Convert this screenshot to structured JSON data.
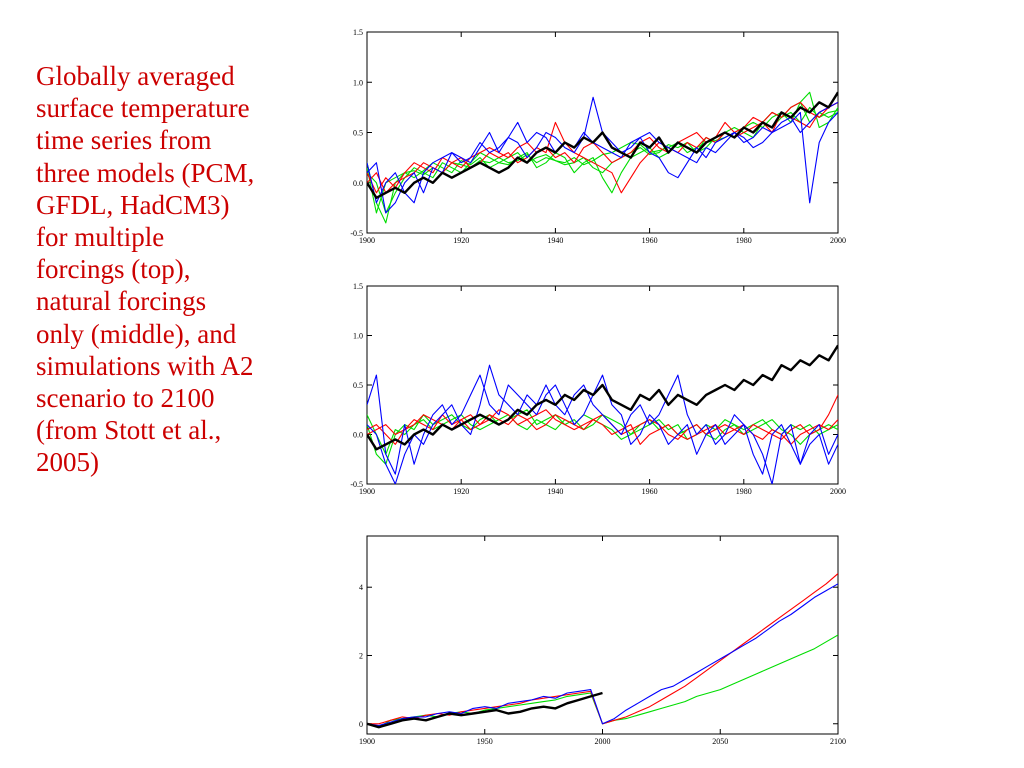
{
  "caption": "Globally averaged\nsurface temperature\ntime series from\nthree models (PCM,\nGFDL, HadCM3)\nfor multiple\nforcings (top),\nnatural forcings\nonly (middle), and\nsimulations with A2\nscenario to 2100\n(from Stott et al.,\n2005)",
  "colors": {
    "caption": "#cc0000",
    "observed": "#000000",
    "pcm": "#0000ff",
    "gfdl": "#ff0000",
    "hadcm3": "#00dd00"
  },
  "chart_data": [
    {
      "type": "line",
      "panel": "top",
      "xlim": [
        1900,
        2000
      ],
      "ylim": [
        -0.5,
        1.5
      ],
      "x_ticks": [
        "1900",
        "1920",
        "1940",
        "1960",
        "1980",
        "2000"
      ],
      "y_ticks": [
        "-0.5",
        "0.0",
        "0.5",
        "1.0",
        "1.5"
      ],
      "x_start": 1900,
      "x_step": 2,
      "series": [
        {
          "color": "#00dd00",
          "values": [
            0.15,
            -0.3,
            0.0,
            0.05,
            0.1,
            0.12,
            0.08,
            0.15,
            0.1,
            0.2,
            0.18,
            0.15,
            0.22,
            0.2,
            0.25,
            0.2,
            0.22,
            0.28,
            0.2,
            0.25,
            0.22,
            0.2,
            0.25,
            0.18,
            0.22,
            0.28,
            0.3,
            0.35,
            0.4,
            0.38,
            0.3,
            0.32,
            0.35,
            0.4,
            0.3,
            0.35,
            0.4,
            0.42,
            0.45,
            0.5,
            0.55,
            0.5,
            0.6,
            0.7,
            0.65,
            0.75,
            0.8,
            0.6,
            0.7,
            0.65,
            0.7
          ]
        },
        {
          "color": "#00dd00",
          "values": [
            0.2,
            -0.2,
            -0.4,
            0.0,
            0.1,
            0.05,
            0.12,
            0.2,
            0.15,
            0.1,
            0.22,
            0.18,
            0.25,
            0.15,
            0.2,
            0.25,
            0.3,
            0.2,
            0.25,
            0.28,
            0.22,
            0.18,
            0.2,
            0.25,
            0.15,
            0.1,
            0.2,
            0.25,
            0.3,
            0.35,
            0.28,
            0.3,
            0.38,
            0.35,
            0.4,
            0.3,
            0.35,
            0.45,
            0.5,
            0.45,
            0.55,
            0.6,
            0.55,
            0.65,
            0.7,
            0.6,
            0.8,
            0.9,
            0.55,
            0.6,
            0.75
          ]
        },
        {
          "color": "#00dd00",
          "values": [
            0.1,
            0.0,
            -0.3,
            -0.1,
            0.05,
            0.15,
            0.1,
            0.05,
            0.2,
            0.15,
            0.1,
            0.2,
            0.3,
            0.25,
            0.2,
            0.18,
            0.25,
            0.3,
            0.15,
            0.2,
            0.3,
            0.25,
            0.1,
            0.2,
            0.25,
            0.05,
            -0.1,
            0.1,
            0.25,
            0.3,
            0.35,
            0.25,
            0.3,
            0.4,
            0.35,
            0.3,
            0.45,
            0.4,
            0.5,
            0.55,
            0.5,
            0.45,
            0.6,
            0.55,
            0.65,
            0.7,
            0.6,
            0.75,
            0.65,
            0.7,
            0.72
          ]
        },
        {
          "color": "#ff0000",
          "values": [
            0.1,
            -0.1,
            0.05,
            -0.05,
            0.1,
            0.2,
            0.15,
            0.1,
            0.25,
            0.2,
            0.15,
            0.25,
            0.3,
            0.35,
            0.3,
            0.25,
            0.35,
            0.4,
            0.3,
            0.35,
            0.25,
            0.3,
            0.2,
            0.35,
            0.4,
            0.3,
            0.2,
            0.25,
            0.3,
            0.4,
            0.45,
            0.35,
            0.3,
            0.4,
            0.45,
            0.5,
            0.4,
            0.45,
            0.6,
            0.5,
            0.55,
            0.65,
            0.6,
            0.7,
            0.65,
            0.75,
            0.8,
            0.7,
            0.65,
            0.75,
            0.8
          ]
        },
        {
          "color": "#ff0000",
          "values": [
            0.0,
            0.1,
            -0.1,
            0.0,
            0.05,
            0.1,
            0.2,
            0.15,
            0.1,
            0.2,
            0.25,
            0.15,
            0.2,
            0.3,
            0.25,
            0.3,
            0.2,
            0.25,
            0.35,
            0.3,
            0.6,
            0.4,
            0.3,
            0.25,
            0.2,
            0.15,
            0.1,
            -0.1,
            0.05,
            0.2,
            0.3,
            0.4,
            0.35,
            0.3,
            0.4,
            0.35,
            0.45,
            0.4,
            0.5,
            0.45,
            0.5,
            0.55,
            0.6,
            0.5,
            0.7,
            0.65,
            0.6,
            0.55,
            0.7,
            0.75,
            0.8
          ]
        },
        {
          "color": "#0000ff",
          "values": [
            0.2,
            -0.2,
            0.0,
            0.1,
            -0.1,
            -0.2,
            0.1,
            0.2,
            0.25,
            0.3,
            0.2,
            0.25,
            0.4,
            0.3,
            0.35,
            0.45,
            0.6,
            0.4,
            0.5,
            0.45,
            0.3,
            0.4,
            0.35,
            0.5,
            0.4,
            0.35,
            0.3,
            0.25,
            0.4,
            0.45,
            0.5,
            0.4,
            0.35,
            0.3,
            0.25,
            0.2,
            0.35,
            0.3,
            0.4,
            0.5,
            0.45,
            0.35,
            0.4,
            0.5,
            0.55,
            0.6,
            0.7,
            -0.2,
            0.4,
            0.6,
            0.7
          ]
        },
        {
          "color": "#0000ff",
          "values": [
            0.1,
            0.2,
            -0.3,
            -0.2,
            0.0,
            0.1,
            -0.1,
            0.15,
            0.1,
            0.3,
            0.25,
            0.2,
            0.35,
            0.5,
            0.3,
            0.45,
            0.4,
            0.25,
            0.35,
            0.5,
            0.45,
            0.35,
            0.3,
            0.45,
            0.85,
            0.5,
            0.4,
            0.3,
            0.35,
            0.45,
            0.3,
            0.25,
            0.1,
            0.05,
            0.2,
            0.35,
            0.25,
            0.4,
            0.45,
            0.5,
            0.4,
            0.45,
            0.55,
            0.5,
            0.6,
            0.65,
            0.5,
            0.6,
            0.7,
            0.75,
            0.8
          ]
        },
        {
          "color": "#000000",
          "bold": true,
          "values": [
            0.0,
            -0.15,
            -0.1,
            -0.05,
            -0.1,
            0.0,
            0.05,
            0.0,
            0.1,
            0.05,
            0.1,
            0.15,
            0.2,
            0.15,
            0.1,
            0.15,
            0.25,
            0.2,
            0.3,
            0.35,
            0.3,
            0.4,
            0.35,
            0.45,
            0.4,
            0.5,
            0.35,
            0.3,
            0.25,
            0.4,
            0.35,
            0.45,
            0.3,
            0.4,
            0.35,
            0.3,
            0.4,
            0.45,
            0.5,
            0.45,
            0.55,
            0.5,
            0.6,
            0.55,
            0.7,
            0.65,
            0.75,
            0.7,
            0.8,
            0.75,
            0.9
          ]
        }
      ]
    },
    {
      "type": "line",
      "panel": "middle",
      "xlim": [
        1900,
        2000
      ],
      "ylim": [
        -0.5,
        1.5
      ],
      "x_ticks": [
        "1900",
        "1920",
        "1940",
        "1960",
        "1980",
        "2000"
      ],
      "y_ticks": [
        "-0.5",
        "0.0",
        "0.5",
        "1.0",
        "1.5"
      ],
      "x_start": 1900,
      "x_step": 2,
      "series": [
        {
          "color": "#00dd00",
          "values": [
            0.1,
            -0.2,
            -0.3,
            0.0,
            0.1,
            0.05,
            0.2,
            0.1,
            0.15,
            0.2,
            0.1,
            0.05,
            0.15,
            0.2,
            0.1,
            0.15,
            0.2,
            0.25,
            0.1,
            0.15,
            0.2,
            0.1,
            0.15,
            0.05,
            0.1,
            0.2,
            0.15,
            0.1,
            0.0,
            0.05,
            0.1,
            0.15,
            0.05,
            0.1,
            -0.05,
            0.0,
            0.1,
            0.05,
            0.15,
            0.1,
            0.05,
            0.1,
            0.15,
            0.05,
            0.0,
            0.1,
            0.05,
            0.1,
            0.0,
            0.05,
            0.1
          ]
        },
        {
          "color": "#00dd00",
          "values": [
            0.2,
            0.0,
            -0.2,
            0.05,
            0.0,
            0.1,
            0.15,
            0.05,
            0.1,
            0.15,
            0.2,
            0.1,
            0.05,
            0.1,
            0.15,
            0.2,
            0.1,
            0.05,
            0.15,
            0.1,
            0.05,
            0.15,
            0.1,
            0.2,
            0.15,
            0.1,
            0.05,
            -0.05,
            0.0,
            0.1,
            0.15,
            0.05,
            0.1,
            0.0,
            0.05,
            0.1,
            0.0,
            -0.05,
            0.05,
            0.1,
            0.0,
            0.05,
            0.1,
            0.15,
            0.05,
            0.0,
            -0.1,
            0.0,
            0.05,
            0.1,
            0.05
          ]
        },
        {
          "color": "#ff0000",
          "values": [
            0.05,
            0.1,
            0.0,
            -0.1,
            0.05,
            0.1,
            0.2,
            0.15,
            0.1,
            0.05,
            0.15,
            0.2,
            0.1,
            0.15,
            0.25,
            0.2,
            0.1,
            0.15,
            0.2,
            0.25,
            0.15,
            0.1,
            0.05,
            0.1,
            0.15,
            0.2,
            0.1,
            0.0,
            0.05,
            0.1,
            0.15,
            0.1,
            0.0,
            -0.05,
            0.05,
            0.1,
            0.0,
            0.05,
            0.1,
            0.05,
            0.0,
            0.1,
            0.05,
            0.0,
            -0.05,
            0.05,
            0.1,
            0.0,
            0.05,
            0.2,
            0.4
          ]
        },
        {
          "color": "#ff0000",
          "values": [
            0.0,
            0.05,
            0.1,
            0.0,
            0.05,
            0.15,
            0.1,
            0.05,
            0.2,
            0.1,
            0.15,
            0.05,
            0.1,
            0.2,
            0.15,
            0.1,
            0.2,
            0.15,
            0.05,
            0.1,
            0.2,
            0.15,
            0.1,
            0.05,
            0.15,
            0.1,
            0.0,
            0.05,
            0.1,
            -0.1,
            0.0,
            0.05,
            0.1,
            0.0,
            -0.05,
            0.0,
            0.05,
            0.1,
            0.0,
            0.05,
            0.1,
            0.0,
            -0.05,
            0.05,
            0.0,
            -0.1,
            0.0,
            0.05,
            0.1,
            0.05,
            0.15
          ]
        },
        {
          "color": "#0000ff",
          "values": [
            0.3,
            0.6,
            -0.2,
            -0.4,
            0.1,
            -0.3,
            0.0,
            0.2,
            0.3,
            0.1,
            0.2,
            0.4,
            0.6,
            0.3,
            0.2,
            0.5,
            0.4,
            0.3,
            0.2,
            0.4,
            0.5,
            0.3,
            0.1,
            0.2,
            0.4,
            0.6,
            0.3,
            0.2,
            -0.1,
            0.0,
            0.2,
            0.1,
            -0.1,
            0.0,
            0.1,
            -0.2,
            0.0,
            0.1,
            -0.1,
            0.0,
            0.1,
            -0.2,
            -0.4,
            0.0,
            0.1,
            -0.1,
            -0.3,
            0.0,
            0.1,
            -0.2,
            0.0
          ]
        },
        {
          "color": "#0000ff",
          "values": [
            0.1,
            0.0,
            -0.3,
            -0.5,
            -0.2,
            0.0,
            -0.1,
            0.1,
            0.2,
            0.3,
            0.1,
            0.0,
            0.3,
            0.7,
            0.4,
            0.3,
            0.2,
            0.4,
            0.3,
            0.5,
            0.3,
            0.2,
            0.4,
            0.5,
            0.3,
            0.2,
            0.1,
            0.0,
            0.2,
            0.3,
            0.1,
            0.2,
            0.4,
            0.6,
            0.2,
            0.0,
            0.1,
            -0.1,
            0.0,
            0.2,
            0.1,
            0.0,
            -0.2,
            -0.5,
            0.0,
            0.1,
            -0.3,
            -0.1,
            0.0,
            -0.3,
            -0.1
          ]
        },
        {
          "color": "#000000",
          "bold": true,
          "values": [
            0.0,
            -0.15,
            -0.1,
            -0.05,
            -0.1,
            0.0,
            0.05,
            0.0,
            0.1,
            0.05,
            0.1,
            0.15,
            0.2,
            0.15,
            0.1,
            0.15,
            0.25,
            0.2,
            0.3,
            0.35,
            0.3,
            0.4,
            0.35,
            0.45,
            0.4,
            0.5,
            0.35,
            0.3,
            0.25,
            0.4,
            0.35,
            0.45,
            0.3,
            0.4,
            0.35,
            0.3,
            0.4,
            0.45,
            0.5,
            0.45,
            0.55,
            0.5,
            0.6,
            0.55,
            0.7,
            0.65,
            0.75,
            0.7,
            0.8,
            0.75,
            0.9
          ]
        }
      ]
    },
    {
      "type": "line",
      "panel": "bottom",
      "xlim": [
        1900,
        2100
      ],
      "ylim": [
        -0.3,
        5.5
      ],
      "x_ticks": [
        "1900",
        "1950",
        "2000",
        "2050",
        "2100"
      ],
      "y_ticks": [
        "0",
        "2",
        "4"
      ],
      "x_start": 1900,
      "x_step": 5,
      "series": [
        {
          "color": "#00dd00",
          "values": [
            0.0,
            -0.1,
            0.1,
            0.15,
            0.2,
            0.25,
            0.2,
            0.3,
            0.35,
            0.3,
            0.4,
            0.45,
            0.5,
            0.55,
            0.6,
            0.65,
            0.7,
            0.8,
            0.85,
            0.9,
            0.0,
            0.1,
            0.15,
            0.25,
            0.35,
            0.45,
            0.55,
            0.65,
            0.8,
            0.9,
            1.0,
            1.15,
            1.3,
            1.45,
            1.6,
            1.75,
            1.9,
            2.05,
            2.2,
            2.4,
            2.6
          ]
        },
        {
          "color": "#ff0000",
          "values": [
            0.0,
            0.0,
            0.1,
            0.2,
            0.15,
            0.25,
            0.3,
            0.25,
            0.35,
            0.4,
            0.45,
            0.5,
            0.55,
            0.6,
            0.7,
            0.75,
            0.8,
            0.85,
            0.9,
            0.95,
            0.0,
            0.1,
            0.2,
            0.35,
            0.5,
            0.7,
            0.9,
            1.1,
            1.35,
            1.6,
            1.85,
            2.1,
            2.35,
            2.6,
            2.85,
            3.1,
            3.35,
            3.6,
            3.85,
            4.1,
            4.4
          ]
        },
        {
          "color": "#0000ff",
          "values": [
            0.0,
            -0.05,
            0.05,
            0.15,
            0.2,
            0.2,
            0.3,
            0.35,
            0.3,
            0.45,
            0.5,
            0.45,
            0.6,
            0.65,
            0.7,
            0.8,
            0.75,
            0.9,
            0.95,
            1.0,
            0.0,
            0.15,
            0.4,
            0.6,
            0.8,
            1.0,
            1.1,
            1.3,
            1.5,
            1.7,
            1.9,
            2.1,
            2.3,
            2.5,
            2.75,
            3.0,
            3.2,
            3.45,
            3.7,
            3.9,
            4.1
          ]
        },
        {
          "color": "#000000",
          "bold": true,
          "values": [
            0.0,
            -0.1,
            0.0,
            0.1,
            0.15,
            0.1,
            0.2,
            0.3,
            0.25,
            0.3,
            0.35,
            0.4,
            0.3,
            0.35,
            0.45,
            0.5,
            0.45,
            0.6,
            0.7,
            0.8,
            0.9
          ]
        }
      ]
    }
  ]
}
